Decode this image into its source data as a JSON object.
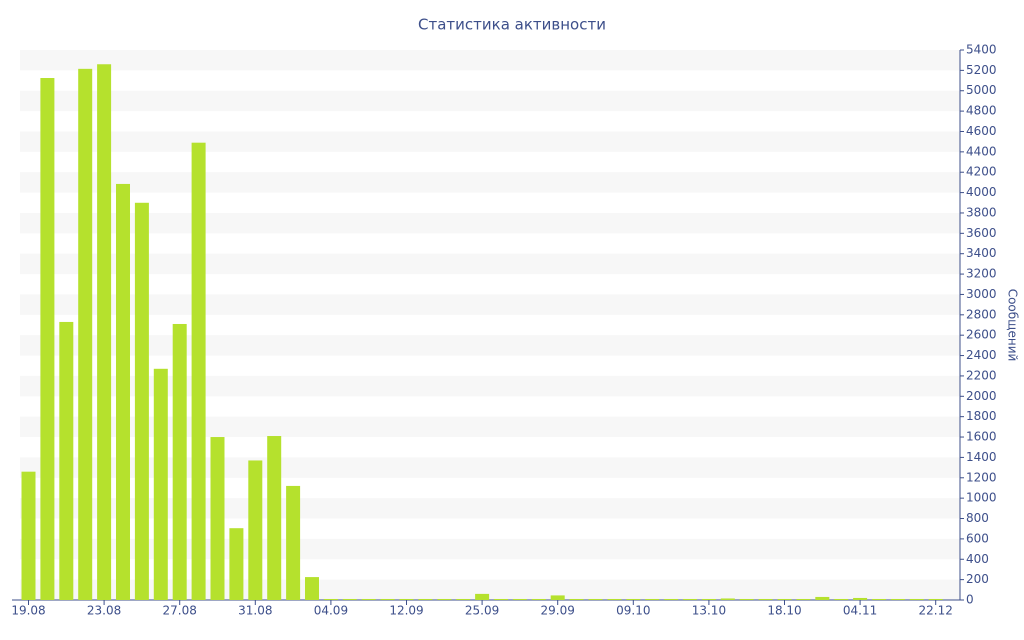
{
  "chart_data": {
    "type": "bar",
    "title": "Статистика активности",
    "y_label": "Сообщений",
    "categories": [
      "19.08",
      null,
      null,
      null,
      "23.08",
      null,
      null,
      null,
      "27.08",
      null,
      null,
      null,
      "31.08",
      null,
      null,
      null,
      "04.09",
      null,
      null,
      null,
      "12.09",
      null,
      null,
      null,
      "25.09",
      null,
      null,
      null,
      "29.09",
      null,
      null,
      null,
      "09.10",
      null,
      null,
      null,
      "13.10",
      null,
      null,
      null,
      "18.10",
      null,
      null,
      null,
      "04.11",
      null,
      null,
      null,
      "22.12"
    ],
    "values": [
      1260,
      5125,
      2730,
      5215,
      5260,
      4085,
      3900,
      2270,
      2710,
      4490,
      1600,
      705,
      1370,
      1610,
      1120,
      225,
      10,
      10,
      10,
      10,
      10,
      10,
      10,
      10,
      60,
      10,
      10,
      10,
      45,
      10,
      10,
      10,
      10,
      10,
      10,
      10,
      10,
      15,
      10,
      10,
      10,
      10,
      30,
      10,
      20,
      10,
      10,
      10,
      10
    ],
    "color": "#b5e12d",
    "ylim": [
      0,
      5400
    ],
    "yticks": [
      0,
      200,
      400,
      600,
      800,
      1000,
      1200,
      1400,
      1600,
      1800,
      2000,
      2200,
      2400,
      2600,
      2800,
      3000,
      3200,
      3400,
      3600,
      3800,
      4000,
      4200,
      4400,
      4600,
      4800,
      5000,
      5200,
      5400
    ],
    "grid": true,
    "y_axis_side": "right"
  }
}
